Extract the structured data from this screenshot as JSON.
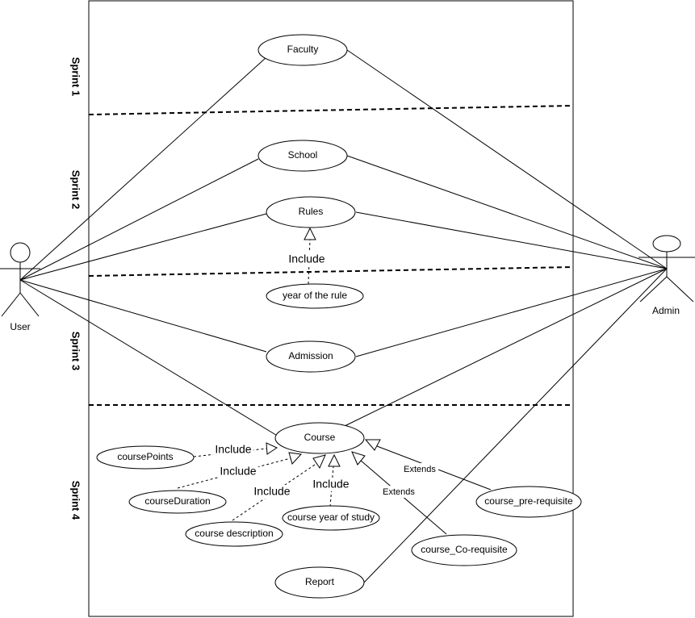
{
  "actors": {
    "user": "User",
    "admin": "Admin"
  },
  "sprints": [
    "Sprint 1",
    "Sprint 2",
    "Sprint 3",
    "Sprint 4"
  ],
  "use_cases": {
    "faculty": "Faculty",
    "school": "School",
    "rules": "Rules",
    "year_of_rule": "year of the rule",
    "admission": "Admission",
    "course": "Course",
    "course_points": "coursePoints",
    "course_duration": "courseDuration",
    "course_description": "course description",
    "course_year_of_study": "course year of study",
    "course_pre_requisite": "course_pre-requisite",
    "course_co_requisite": "course_Co-requisite",
    "report": "Report"
  },
  "relations": {
    "include": "Include",
    "extends": "Extends"
  }
}
